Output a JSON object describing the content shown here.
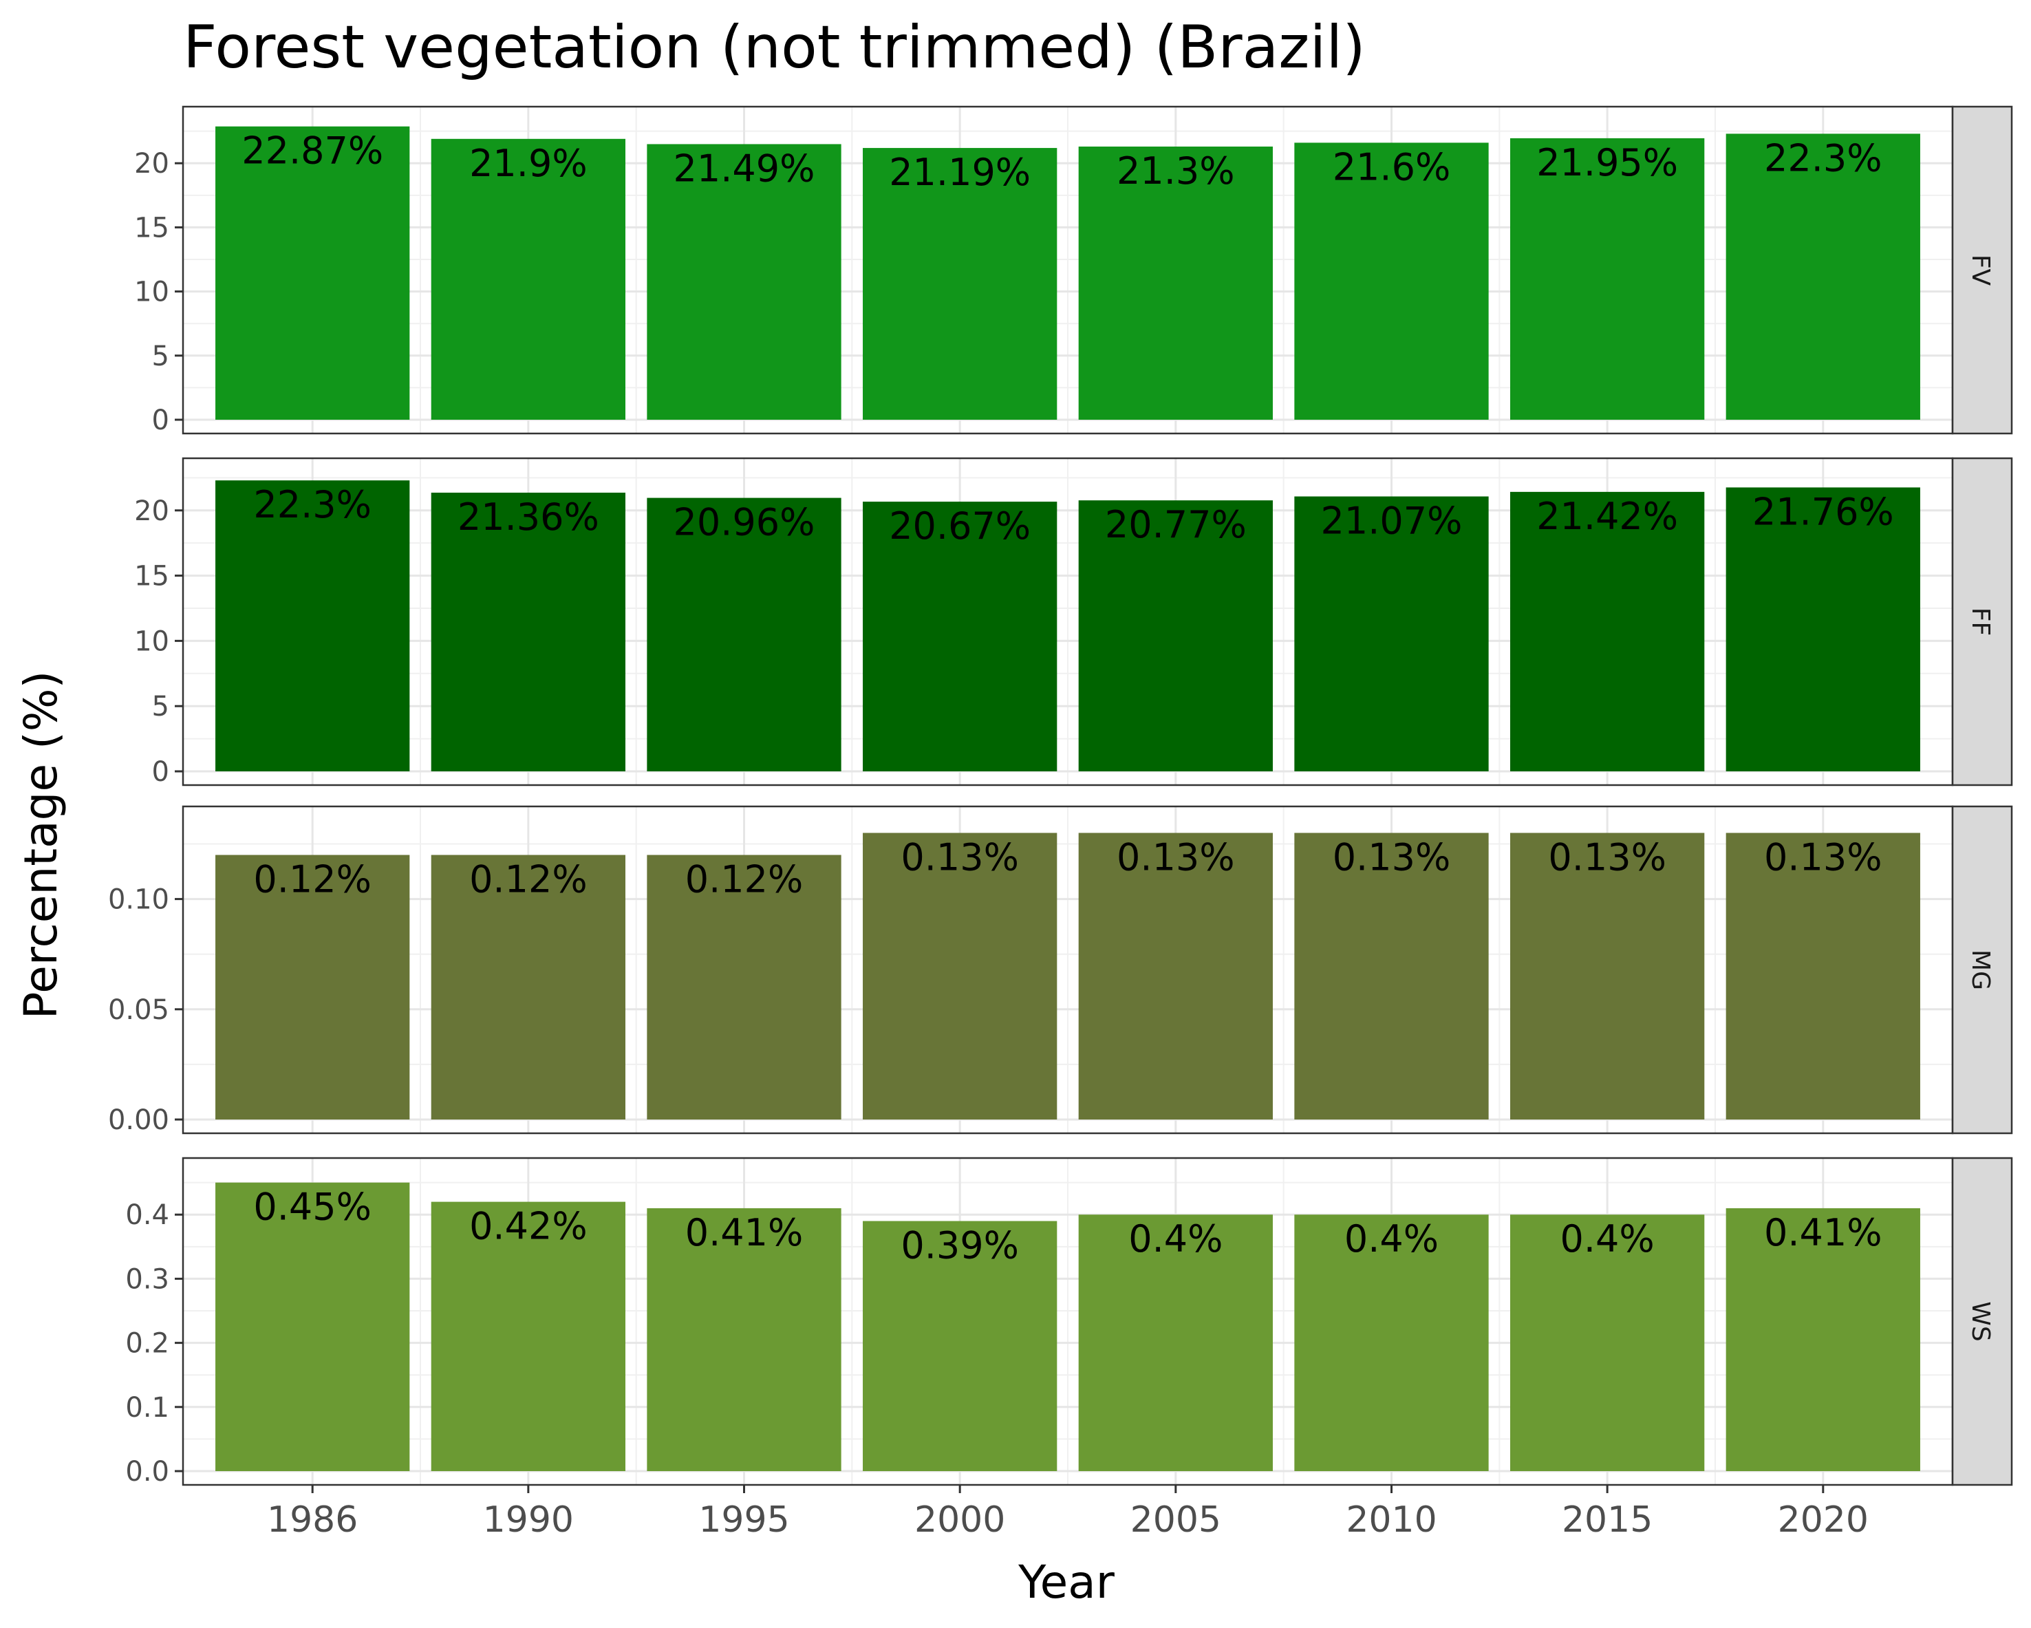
{
  "chart_data": {
    "type": "bar",
    "title": "Forest vegetation (not trimmed) (Brazil)",
    "xlabel": "Year",
    "ylabel": "Percentage (%)",
    "categories": [
      "1986",
      "1990",
      "1995",
      "2000",
      "2005",
      "2010",
      "2015",
      "2020"
    ],
    "grid": true,
    "facet_layout": "rows, strip labels on right",
    "panels": [
      {
        "strip": "FV",
        "color": "#11961A",
        "ylim": [
          0,
          23.5
        ],
        "yticks": [
          "0",
          "5",
          "10",
          "15",
          "20"
        ],
        "ytick_values": [
          0,
          5,
          10,
          15,
          20
        ],
        "values": [
          22.87,
          21.9,
          21.49,
          21.19,
          21.3,
          21.6,
          21.95,
          22.3
        ],
        "labels": [
          "22.87%",
          "21.9%",
          "21.49%",
          "21.19%",
          "21.3%",
          "21.6%",
          "21.95%",
          "22.3%"
        ]
      },
      {
        "strip": "FF",
        "color": "#006400",
        "ylim": [
          0,
          23.1
        ],
        "yticks": [
          "0",
          "5",
          "10",
          "15",
          "20"
        ],
        "ytick_values": [
          0,
          5,
          10,
          15,
          20
        ],
        "values": [
          22.3,
          21.36,
          20.96,
          20.67,
          20.77,
          21.07,
          21.42,
          21.76
        ],
        "labels": [
          "22.3%",
          "21.36%",
          "20.96%",
          "20.67%",
          "20.77%",
          "21.07%",
          "21.42%",
          "21.76%"
        ]
      },
      {
        "strip": "MG",
        "color": "#687537",
        "ylim": [
          0,
          0.1367
        ],
        "yticks": [
          "0.00",
          "0.05",
          "0.10"
        ],
        "ytick_values": [
          0,
          0.05,
          0.1
        ],
        "values": [
          0.12,
          0.12,
          0.12,
          0.13,
          0.13,
          0.13,
          0.13,
          0.13
        ],
        "labels": [
          "0.12%",
          "0.12%",
          "0.12%",
          "0.13%",
          "0.13%",
          "0.13%",
          "0.13%",
          "0.13%"
        ]
      },
      {
        "strip": "WS",
        "color": "#6B9A33",
        "ylim": [
          0,
          0.47
        ],
        "yticks": [
          "0.0",
          "0.1",
          "0.2",
          "0.3",
          "0.4"
        ],
        "ytick_values": [
          0,
          0.1,
          0.2,
          0.3,
          0.4
        ],
        "values": [
          0.45,
          0.42,
          0.41,
          0.39,
          0.4,
          0.4,
          0.4,
          0.41
        ],
        "labels": [
          "0.45%",
          "0.42%",
          "0.41%",
          "0.39%",
          "0.4%",
          "0.4%",
          "0.4%",
          "0.41%"
        ]
      }
    ]
  }
}
